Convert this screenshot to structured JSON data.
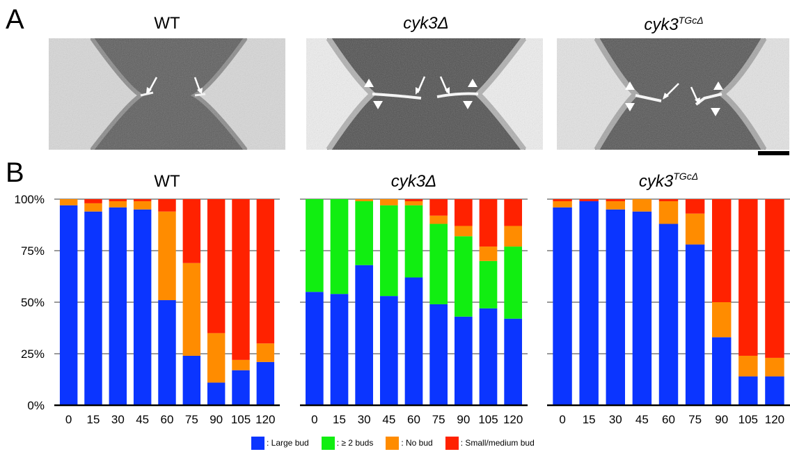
{
  "panels": {
    "a": "A",
    "b": "B"
  },
  "em_titles": [
    {
      "main": "WT",
      "sup": ""
    },
    {
      "main": "cyk3Δ",
      "sup": ""
    },
    {
      "main": "cyk3",
      "sup": "TGcΔ"
    }
  ],
  "colors": {
    "large_bud": "#0b35ff",
    "two_buds": "#11ee11",
    "no_bud": "#ff8c00",
    "small_medium_bud": "#ff2200",
    "grid": "#9a9a9a"
  },
  "legend": [
    {
      "key": "large_bud",
      "label": ": Large bud"
    },
    {
      "key": "two_buds",
      "label": ": ≥ 2 buds"
    },
    {
      "key": "no_bud",
      "label": ": No bud"
    },
    {
      "key": "small_medium_bud",
      "label": ": Small/medium bud"
    }
  ],
  "chart_data": [
    {
      "type": "bar",
      "stacked": true,
      "title": "WT",
      "title_sup": "",
      "categories": [
        "0",
        "15",
        "30",
        "45",
        "60",
        "75",
        "90",
        "105",
        "120"
      ],
      "y_ticks": [
        "0%",
        "25%",
        "50%",
        "75%",
        "100%"
      ],
      "ylim": [
        0,
        100
      ],
      "series": [
        {
          "name": ": Large bud",
          "color_key": "large_bud",
          "values": [
            97,
            94,
            96,
            95,
            51,
            24,
            11,
            17,
            21
          ]
        },
        {
          "name": ": ≥ 2 buds",
          "color_key": "two_buds",
          "values": [
            0,
            0,
            0,
            0,
            0,
            0,
            0,
            0,
            0
          ]
        },
        {
          "name": ": No bud",
          "color_key": "no_bud",
          "values": [
            3,
            4,
            3,
            4,
            43,
            45,
            24,
            5,
            9
          ]
        },
        {
          "name": ": Small/medium bud",
          "color_key": "small_medium_bud",
          "values": [
            0,
            2,
            1,
            1,
            6,
            31,
            65,
            78,
            70
          ]
        }
      ]
    },
    {
      "type": "bar",
      "stacked": true,
      "title": "cyk3Δ",
      "title_sup": "",
      "categories": [
        "0",
        "15",
        "30",
        "45",
        "60",
        "75",
        "90",
        "105",
        "120"
      ],
      "y_ticks": [
        "0%",
        "25%",
        "50%",
        "75%",
        "100%"
      ],
      "ylim": [
        0,
        100
      ],
      "series": [
        {
          "name": ": Large bud",
          "color_key": "large_bud",
          "values": [
            55,
            54,
            68,
            53,
            62,
            49,
            43,
            47,
            42
          ]
        },
        {
          "name": ": ≥ 2 buds",
          "color_key": "two_buds",
          "values": [
            45,
            46,
            31,
            44,
            35,
            39,
            39,
            23,
            35
          ]
        },
        {
          "name": ": No bud",
          "color_key": "no_bud",
          "values": [
            0,
            0,
            1,
            3,
            2,
            4,
            5,
            7,
            10
          ]
        },
        {
          "name": ": Small/medium bud",
          "color_key": "small_medium_bud",
          "values": [
            0,
            0,
            0,
            0,
            1,
            8,
            13,
            23,
            13
          ]
        }
      ]
    },
    {
      "type": "bar",
      "stacked": true,
      "title": "cyk3",
      "title_sup": "TGcΔ",
      "categories": [
        "0",
        "15",
        "30",
        "45",
        "60",
        "75",
        "90",
        "105",
        "120"
      ],
      "y_ticks": [
        "0%",
        "25%",
        "50%",
        "75%",
        "100%"
      ],
      "ylim": [
        0,
        100
      ],
      "series": [
        {
          "name": ": Large bud",
          "color_key": "large_bud",
          "values": [
            96,
            99,
            95,
            94,
            88,
            78,
            33,
            14,
            14
          ]
        },
        {
          "name": ": ≥ 2 buds",
          "color_key": "two_buds",
          "values": [
            0,
            0,
            0,
            0,
            0,
            0,
            0,
            0,
            0
          ]
        },
        {
          "name": ": No bud",
          "color_key": "no_bud",
          "values": [
            3,
            0,
            4,
            6,
            11,
            15,
            17,
            10,
            9
          ]
        },
        {
          "name": ": Small/medium bud",
          "color_key": "small_medium_bud",
          "values": [
            1,
            1,
            1,
            0,
            1,
            7,
            50,
            76,
            77
          ]
        }
      ]
    }
  ]
}
